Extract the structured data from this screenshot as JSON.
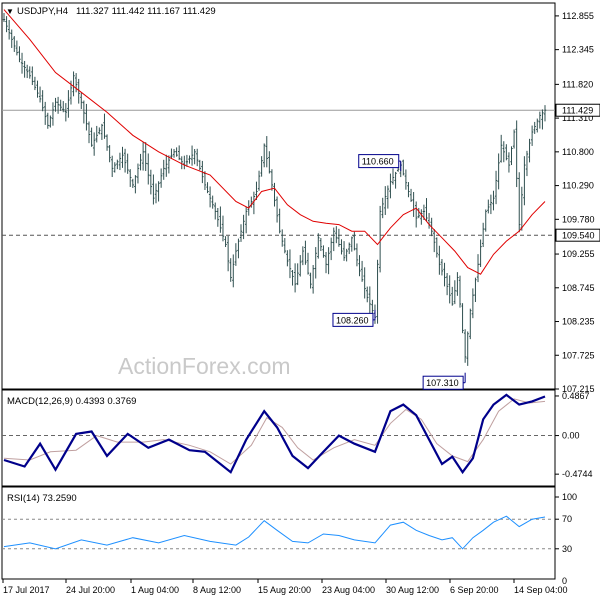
{
  "header": {
    "arrow": "▼",
    "symbol": "USDJPY,H4",
    "ohlc": "111.327 111.442 111.167 111.429"
  },
  "watermark": "ActionForex.com",
  "colors": {
    "candles": "#2f4f4f",
    "ma": "#e00000",
    "macd": "#00008b",
    "signal": "#c0a0a0",
    "rsi": "#1e90ff",
    "callout_border": "#00008b",
    "callout_bg": "#ffffff",
    "axis": "#000000",
    "level_line": "#555555"
  },
  "chart_data": [
    {
      "type": "candlestick",
      "title": "USDJPY,H4 111.327 111.442 111.167 111.429",
      "ylim": [
        107.215,
        113.05
      ],
      "y_ticks": [
        "112.855",
        "112.345",
        "111.820",
        "111.310",
        "110.800",
        "110.290",
        "109.780",
        "109.255",
        "108.745",
        "108.235",
        "107.725",
        "107.215"
      ],
      "x_tick_labels": [
        "17 Jul 2017",
        "24 Jul 20:00",
        "1 Aug 04:00",
        "8 Aug 12:00",
        "15 Aug 20:00",
        "23 Aug 04:00",
        "30 Aug 12:00",
        "6 Sep 20:00",
        "14 Sep 04:00"
      ],
      "current_price": "111.429",
      "level": "109.540",
      "callouts": [
        {
          "label": "110.660",
          "value": 110.66
        },
        {
          "label": "108.260",
          "value": 108.26
        },
        {
          "label": "107.310",
          "value": 107.31
        }
      ],
      "close_path": [
        [
          0,
          112.8
        ],
        [
          6,
          112.2
        ],
        [
          10,
          111.95
        ],
        [
          14,
          111.6
        ],
        [
          17,
          111.2
        ],
        [
          20,
          111.55
        ],
        [
          24,
          111.4
        ],
        [
          27,
          111.95
        ],
        [
          30,
          111.55
        ],
        [
          34,
          110.9
        ],
        [
          38,
          111.2
        ],
        [
          42,
          110.55
        ],
        [
          46,
          110.75
        ],
        [
          50,
          110.3
        ],
        [
          54,
          110.8
        ],
        [
          58,
          110.1
        ],
        [
          62,
          110.55
        ],
        [
          66,
          110.8
        ],
        [
          70,
          110.6
        ],
        [
          74,
          110.8
        ],
        [
          78,
          110.3
        ],
        [
          82,
          109.9
        ],
        [
          86,
          109.4
        ],
        [
          88,
          108.9
        ],
        [
          90,
          109.3
        ],
        [
          94,
          109.9
        ],
        [
          98,
          110.2
        ],
        [
          101,
          110.9
        ],
        [
          104,
          110.3
        ],
        [
          107,
          109.6
        ],
        [
          110,
          109.15
        ],
        [
          113,
          108.8
        ],
        [
          116,
          109.3
        ],
        [
          119,
          108.8
        ],
        [
          122,
          109.5
        ],
        [
          125,
          109.1
        ],
        [
          128,
          109.6
        ],
        [
          132,
          109.2
        ],
        [
          135,
          109.5
        ],
        [
          138,
          109.0
        ],
        [
          141,
          108.6
        ],
        [
          144,
          108.3
        ],
        [
          146,
          109.9
        ],
        [
          150,
          110.35
        ],
        [
          154,
          110.6
        ],
        [
          157,
          110.2
        ],
        [
          160,
          109.8
        ],
        [
          163,
          109.9
        ],
        [
          166,
          109.6
        ],
        [
          169,
          109.1
        ],
        [
          171,
          108.9
        ],
        [
          174,
          108.5
        ],
        [
          176,
          108.9
        ],
        [
          178,
          108.1
        ],
        [
          179,
          107.7
        ],
        [
          181,
          108.4
        ],
        [
          184,
          109.1
        ],
        [
          187,
          109.9
        ],
        [
          190,
          110.1
        ],
        [
          193,
          110.9
        ],
        [
          196,
          110.6
        ],
        [
          198,
          111.1
        ],
        [
          200,
          109.7
        ],
        [
          202,
          110.6
        ],
        [
          205,
          111.1
        ],
        [
          208,
          111.35
        ],
        [
          210,
          111.43
        ]
      ],
      "ma_path": [
        [
          0,
          112.95
        ],
        [
          10,
          112.5
        ],
        [
          20,
          112.0
        ],
        [
          30,
          111.7
        ],
        [
          40,
          111.4
        ],
        [
          50,
          111.05
        ],
        [
          60,
          110.8
        ],
        [
          70,
          110.6
        ],
        [
          80,
          110.45
        ],
        [
          90,
          110.05
        ],
        [
          95,
          109.95
        ],
        [
          100,
          110.2
        ],
        [
          105,
          110.25
        ],
        [
          110,
          110.0
        ],
        [
          115,
          109.85
        ],
        [
          120,
          109.75
        ],
        [
          125,
          109.72
        ],
        [
          130,
          109.7
        ],
        [
          135,
          109.6
        ],
        [
          140,
          109.6
        ],
        [
          145,
          109.4
        ],
        [
          150,
          109.65
        ],
        [
          155,
          109.85
        ],
        [
          160,
          109.95
        ],
        [
          165,
          109.7
        ],
        [
          170,
          109.5
        ],
        [
          175,
          109.3
        ],
        [
          180,
          109.05
        ],
        [
          185,
          108.95
        ],
        [
          190,
          109.25
        ],
        [
          195,
          109.45
        ],
        [
          200,
          109.6
        ],
        [
          205,
          109.85
        ],
        [
          210,
          110.05
        ]
      ],
      "ma_color": "#e00000"
    },
    {
      "type": "line",
      "title": "MACD(12,26,9) 0.4393 0.3769",
      "ylim": [
        -0.62,
        0.56
      ],
      "y_ticks": [
        "0.4867",
        "0.00",
        "-0.4744"
      ],
      "macd_path": [
        [
          0,
          -0.3
        ],
        [
          8,
          -0.38
        ],
        [
          14,
          -0.1
        ],
        [
          20,
          -0.42
        ],
        [
          28,
          0.02
        ],
        [
          34,
          0.05
        ],
        [
          40,
          -0.25
        ],
        [
          48,
          0.02
        ],
        [
          56,
          -0.15
        ],
        [
          64,
          -0.05
        ],
        [
          72,
          -0.18
        ],
        [
          78,
          -0.2
        ],
        [
          84,
          -0.35
        ],
        [
          88,
          -0.45
        ],
        [
          94,
          -0.05
        ],
        [
          101,
          0.3
        ],
        [
          106,
          0.1
        ],
        [
          112,
          -0.25
        ],
        [
          118,
          -0.4
        ],
        [
          124,
          -0.2
        ],
        [
          130,
          0.0
        ],
        [
          136,
          -0.1
        ],
        [
          144,
          -0.2
        ],
        [
          150,
          0.3
        ],
        [
          155,
          0.38
        ],
        [
          160,
          0.25
        ],
        [
          165,
          -0.05
        ],
        [
          170,
          -0.35
        ],
        [
          174,
          -0.26
        ],
        [
          178,
          -0.45
        ],
        [
          182,
          -0.28
        ],
        [
          186,
          0.2
        ],
        [
          190,
          0.38
        ],
        [
          195,
          0.5
        ],
        [
          200,
          0.38
        ],
        [
          205,
          0.42
        ],
        [
          210,
          0.48
        ]
      ],
      "signal_path": [
        [
          0,
          -0.28
        ],
        [
          10,
          -0.3
        ],
        [
          18,
          -0.2
        ],
        [
          28,
          -0.18
        ],
        [
          36,
          0.0
        ],
        [
          44,
          -0.08
        ],
        [
          54,
          -0.08
        ],
        [
          62,
          -0.05
        ],
        [
          72,
          -0.12
        ],
        [
          80,
          -0.2
        ],
        [
          88,
          -0.35
        ],
        [
          96,
          -0.12
        ],
        [
          102,
          0.22
        ],
        [
          108,
          0.1
        ],
        [
          114,
          -0.15
        ],
        [
          120,
          -0.3
        ],
        [
          128,
          -0.15
        ],
        [
          136,
          -0.05
        ],
        [
          144,
          -0.12
        ],
        [
          150,
          0.15
        ],
        [
          156,
          0.32
        ],
        [
          162,
          0.2
        ],
        [
          168,
          -0.1
        ],
        [
          174,
          -0.25
        ],
        [
          180,
          -0.32
        ],
        [
          186,
          -0.05
        ],
        [
          192,
          0.3
        ],
        [
          198,
          0.45
        ],
        [
          204,
          0.4
        ],
        [
          210,
          0.42
        ]
      ]
    },
    {
      "type": "line",
      "title": "RSI(14) 73.2590",
      "ylim": [
        0,
        100
      ],
      "y_ticks": [
        "100",
        "70",
        "30",
        "0"
      ],
      "levels": [
        70,
        30
      ],
      "rsi_path": [
        [
          0,
          33
        ],
        [
          10,
          38
        ],
        [
          20,
          30
        ],
        [
          30,
          42
        ],
        [
          40,
          35
        ],
        [
          50,
          45
        ],
        [
          60,
          38
        ],
        [
          70,
          48
        ],
        [
          80,
          40
        ],
        [
          90,
          35
        ],
        [
          95,
          46
        ],
        [
          101,
          68
        ],
        [
          106,
          55
        ],
        [
          112,
          40
        ],
        [
          118,
          38
        ],
        [
          124,
          50
        ],
        [
          130,
          48
        ],
        [
          136,
          42
        ],
        [
          144,
          38
        ],
        [
          150,
          62
        ],
        [
          155,
          66
        ],
        [
          160,
          55
        ],
        [
          165,
          48
        ],
        [
          170,
          42
        ],
        [
          174,
          45
        ],
        [
          178,
          30
        ],
        [
          182,
          45
        ],
        [
          186,
          55
        ],
        [
          190,
          66
        ],
        [
          195,
          74
        ],
        [
          200,
          60
        ],
        [
          205,
          70
        ],
        [
          210,
          73
        ]
      ]
    }
  ]
}
